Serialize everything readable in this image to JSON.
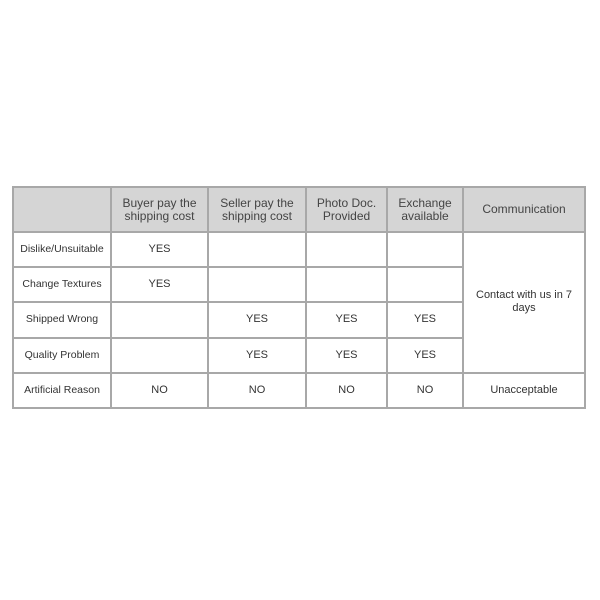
{
  "headers": [
    "",
    "Buyer pay the shipping cost",
    "Seller pay the shipping cost",
    "Photo Doc. Provided",
    "Exchange available",
    "Communication"
  ],
  "rows": [
    {
      "label": "Dislike/Unsuitable",
      "cells": [
        "YES",
        "",
        "",
        ""
      ]
    },
    {
      "label": "Change Textures",
      "cells": [
        "YES",
        "",
        "",
        ""
      ]
    },
    {
      "label": "Shipped Wrong",
      "cells": [
        "",
        "YES",
        "YES",
        "YES"
      ]
    },
    {
      "label": "Quality Problem",
      "cells": [
        "",
        "YES",
        "YES",
        "YES"
      ]
    },
    {
      "label": "Artificial Reason",
      "cells": [
        "NO",
        "NO",
        "NO",
        "NO"
      ]
    }
  ],
  "communication": [
    "Contact with us in 7 days",
    "Unacceptable"
  ],
  "colors": {
    "header_bg": "#d5d5d5",
    "border": "#a8a8a8"
  }
}
